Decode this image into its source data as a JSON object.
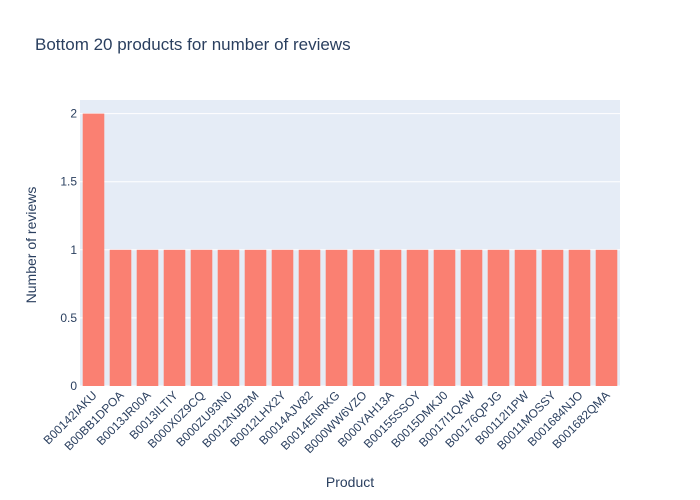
{
  "chart_data": {
    "type": "bar",
    "title": "Bottom 20 products for number of reviews",
    "xlabel": "Product",
    "ylabel": "Number of reviews",
    "categories": [
      "B00142IAKU",
      "B00BB1DPOA",
      "B0013JR00A",
      "B0013ILTIY",
      "B000X0Z9CQ",
      "B000ZU93N0",
      "B0012NJB2M",
      "B0012LHX2Y",
      "B0014AJV82",
      "B0014ENRKG",
      "B000WW6VZO",
      "B000YAH13A",
      "B00155SSOY",
      "B0015DMKJ0",
      "B0017I1QAW",
      "B00176QPJG",
      "B00112I1PW",
      "B0011MOSSY",
      "B001684NJO",
      "B001682QMA"
    ],
    "values": [
      2,
      1,
      1,
      1,
      1,
      1,
      1,
      1,
      1,
      1,
      1,
      1,
      1,
      1,
      1,
      1,
      1,
      1,
      1,
      1
    ],
    "ylim": [
      0,
      2.1
    ],
    "yticks": [
      0,
      0.5,
      1,
      1.5,
      2
    ],
    "ytick_labels": [
      "0",
      "0.5",
      "1",
      "1.5",
      "2"
    ],
    "grid": true,
    "bar_color": "#fa8072",
    "plot_bg": "#e5ecf6",
    "text_color": "#2a3f5f"
  }
}
